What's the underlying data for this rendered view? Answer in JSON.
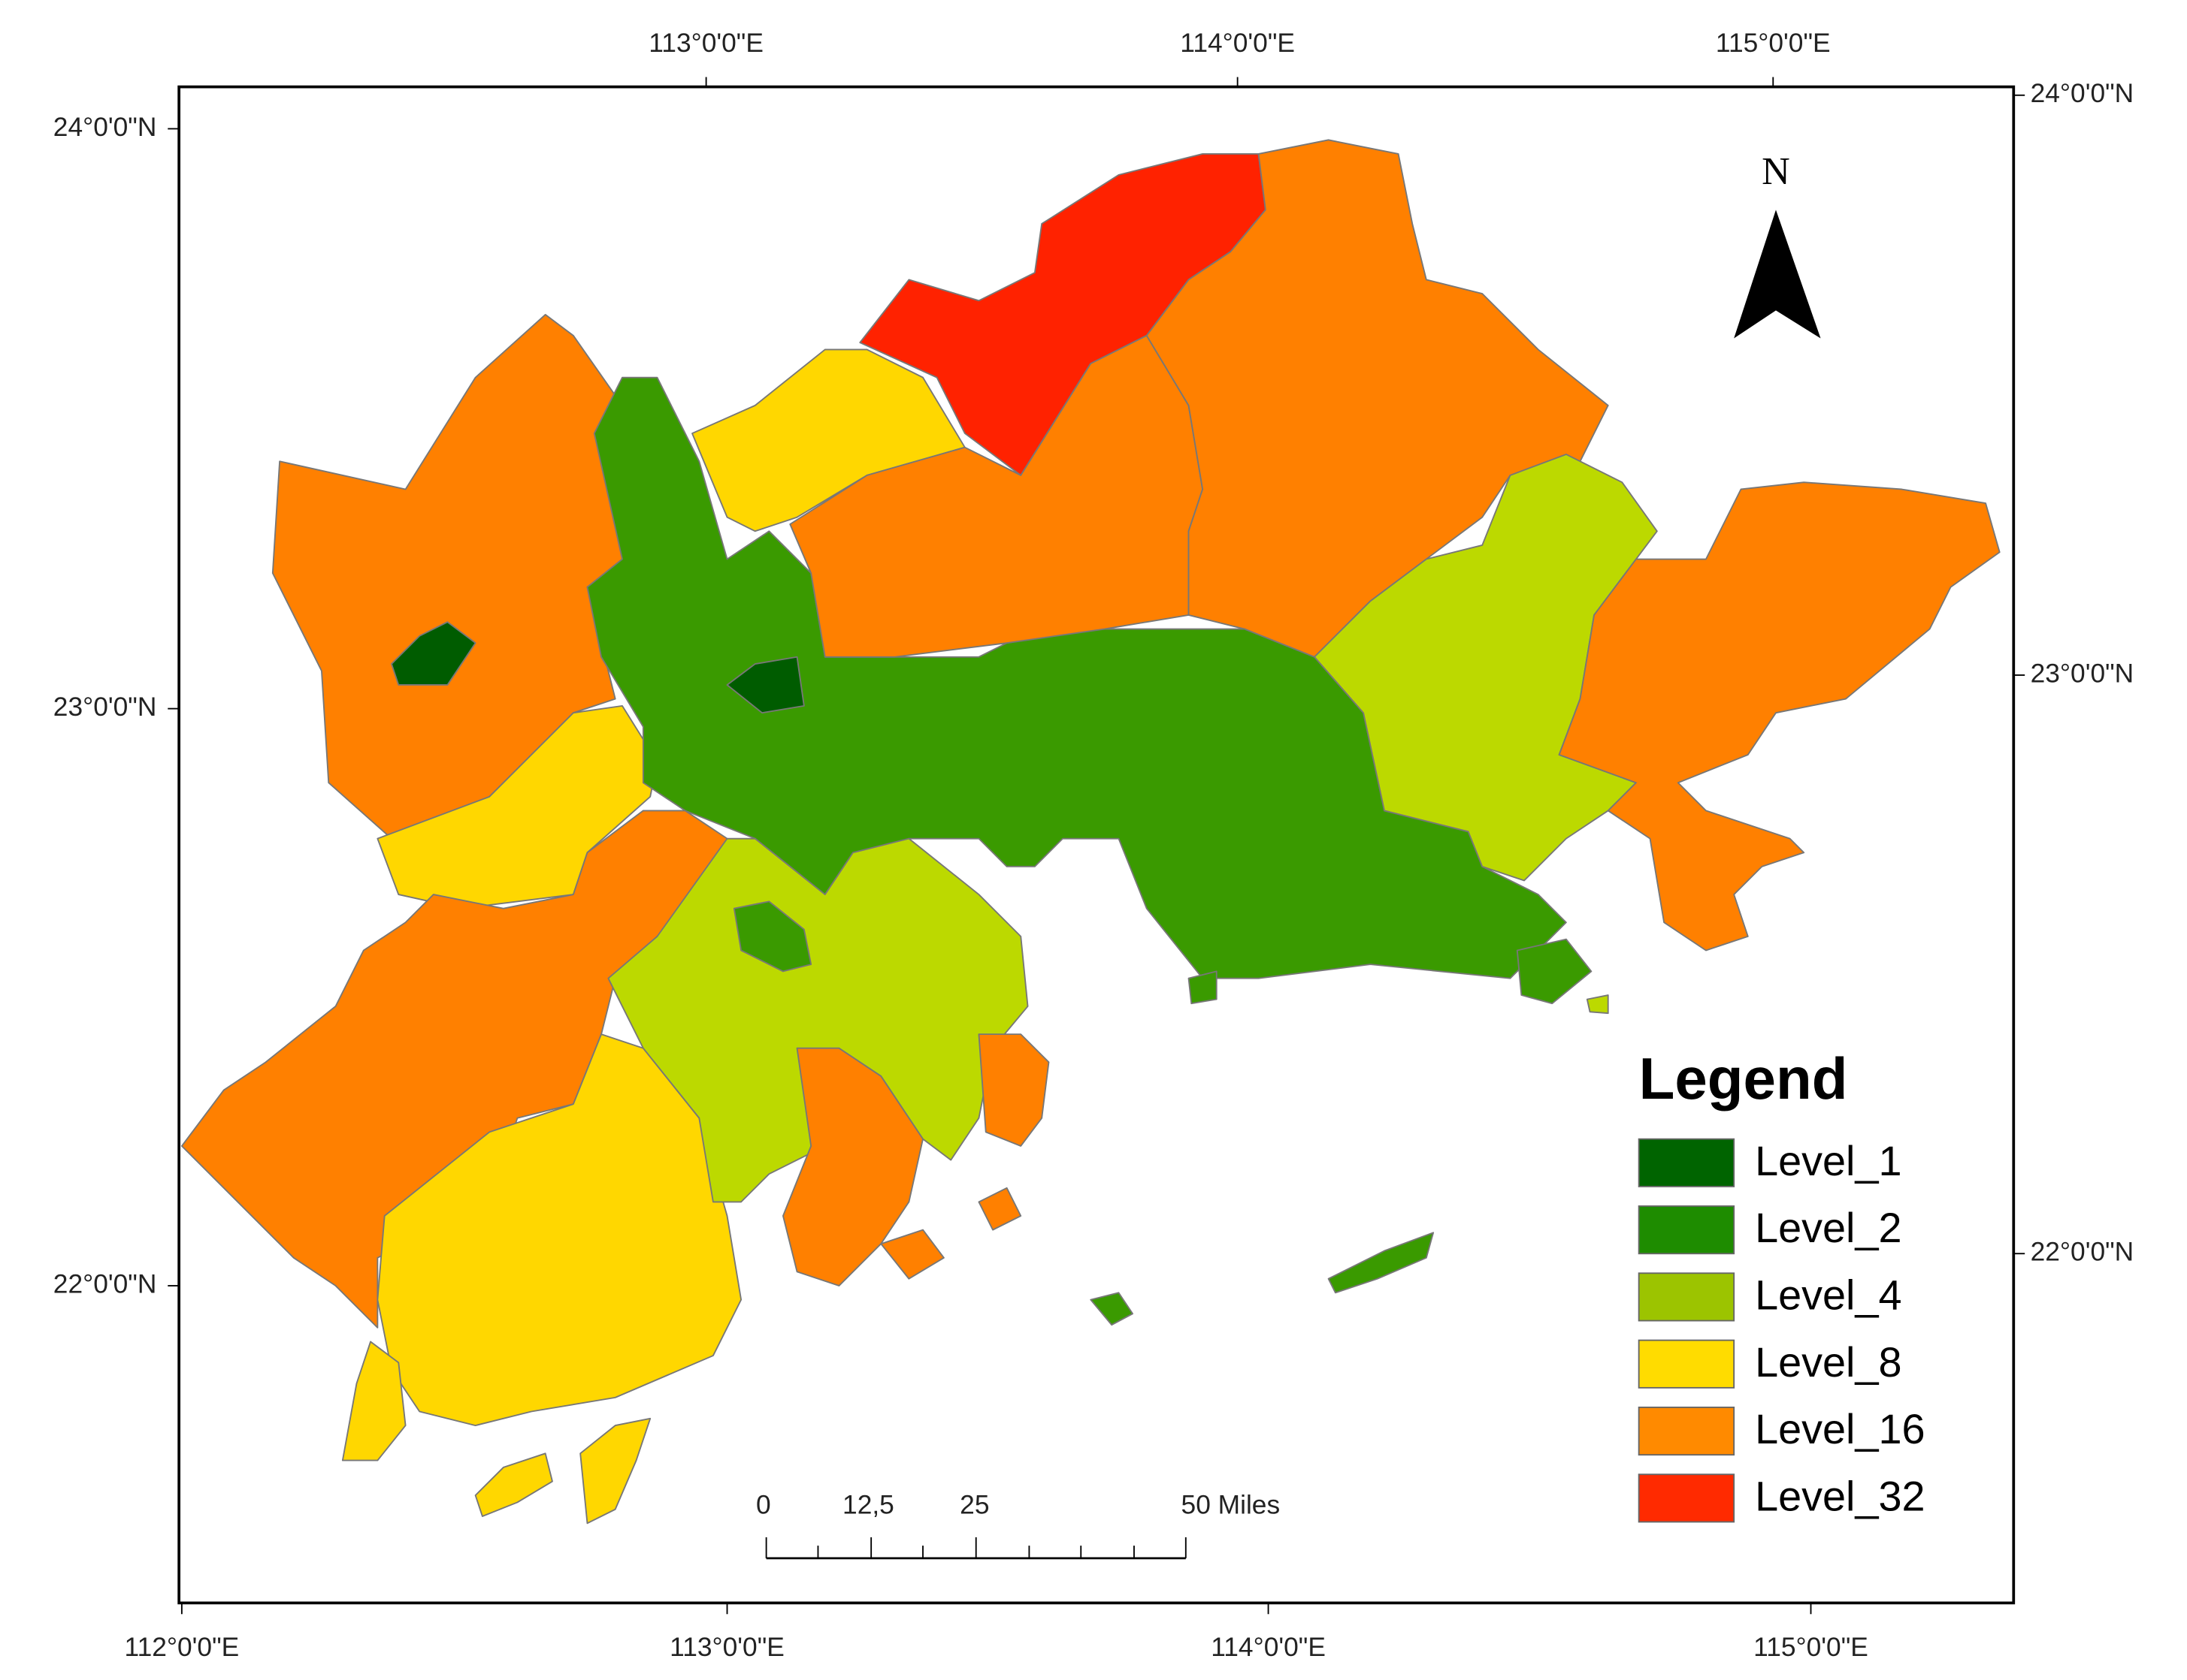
{
  "map": {
    "top_labels": [
      "113°0'0\"E",
      "114°0'0\"E",
      "115°0'0\"E"
    ],
    "bottom_labels": [
      "112°0'0\"E",
      "113°0'0\"E",
      "114°0'0\"E",
      "115°0'0\"E"
    ],
    "left_labels": [
      "24°0'0\"N",
      "23°0'0\"N",
      "22°0'0\"N"
    ],
    "right_labels": [
      "24°0'0\"N",
      "23°0'0\"N",
      "22°0'0\"N"
    ],
    "north": "N",
    "scale_labels": [
      "0",
      "12,5",
      "25",
      "50 Miles"
    ],
    "legend": {
      "title": "Legend",
      "items": [
        {
          "name": "Level_1",
          "color": "#006400"
        },
        {
          "name": "Level_2",
          "color": "#1e8c00"
        },
        {
          "name": "Level_4",
          "color": "#9cc400"
        },
        {
          "name": "Level_8",
          "color": "#ffdc00"
        },
        {
          "name": "Level_16",
          "color": "#ff8a00"
        },
        {
          "name": "Level_32",
          "color": "#ff2a00"
        }
      ]
    }
  }
}
